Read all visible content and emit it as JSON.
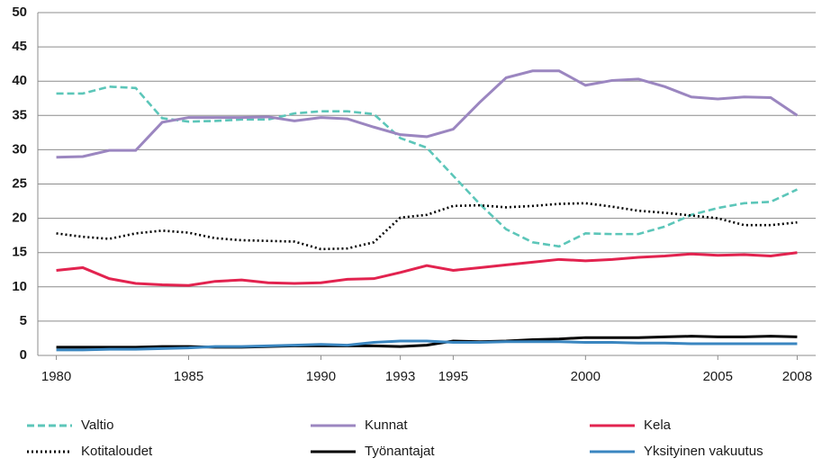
{
  "chart_data": {
    "type": "line",
    "x": [
      1980,
      1981,
      1982,
      1983,
      1984,
      1985,
      1986,
      1987,
      1988,
      1989,
      1990,
      1991,
      1992,
      1993,
      1994,
      1995,
      1996,
      1997,
      1998,
      1999,
      2000,
      2001,
      2002,
      2003,
      2004,
      2005,
      2006,
      2007,
      2008
    ],
    "xlim": [
      1979.3,
      2008.7
    ],
    "xticks": [
      1980,
      1985,
      1990,
      1993,
      1995,
      2000,
      2005,
      2008
    ],
    "ylim": [
      0,
      50
    ],
    "yticks": [
      0,
      5,
      10,
      15,
      20,
      25,
      30,
      35,
      40,
      45,
      50
    ],
    "grid": true,
    "legend": "bottom",
    "series": [
      {
        "name": "Valtio",
        "color": "#5cc6b9",
        "dash": "dashed",
        "values": [
          38.2,
          38.2,
          39.2,
          39.0,
          34.6,
          34.1,
          34.2,
          34.4,
          34.4,
          35.3,
          35.6,
          35.6,
          35.2,
          31.7,
          30.3,
          26.2,
          22.1,
          18.4,
          16.5,
          15.9,
          17.8,
          17.7,
          17.7,
          18.8,
          20.5,
          21.5,
          22.2,
          22.4,
          24.2
        ]
      },
      {
        "name": "Kunnat",
        "color": "#9b86c0",
        "dash": "solid",
        "values": [
          28.9,
          29.0,
          29.9,
          29.9,
          34.0,
          34.7,
          34.7,
          34.7,
          34.8,
          34.2,
          34.7,
          34.5,
          33.3,
          32.2,
          31.9,
          33.0,
          36.9,
          40.5,
          41.5,
          41.5,
          39.4,
          40.1,
          40.3,
          39.2,
          37.7,
          37.4,
          37.7,
          37.6,
          35.0
        ]
      },
      {
        "name": "Kela",
        "color": "#e2234f",
        "dash": "solid",
        "values": [
          12.4,
          12.8,
          11.2,
          10.5,
          10.3,
          10.2,
          10.8,
          11.0,
          10.6,
          10.5,
          10.6,
          11.1,
          11.2,
          12.1,
          13.1,
          12.4,
          12.8,
          13.2,
          13.6,
          14.0,
          13.8,
          14.0,
          14.3,
          14.5,
          14.8,
          14.6,
          14.7,
          14.5,
          15.0
        ]
      },
      {
        "name": "Kotitaloudet",
        "color": "#000000",
        "dash": "dotted",
        "values": [
          17.8,
          17.3,
          17.0,
          17.8,
          18.2,
          17.9,
          17.1,
          16.8,
          16.7,
          16.6,
          15.5,
          15.6,
          16.5,
          20.1,
          20.5,
          21.8,
          21.9,
          21.6,
          21.8,
          22.1,
          22.2,
          21.7,
          21.1,
          20.8,
          20.4,
          20.0,
          19.0,
          19.0,
          19.4
        ]
      },
      {
        "name": "Työnantajat",
        "color": "#000000",
        "dash": "solid",
        "values": [
          1.2,
          1.2,
          1.2,
          1.2,
          1.3,
          1.3,
          1.2,
          1.2,
          1.3,
          1.4,
          1.4,
          1.4,
          1.4,
          1.3,
          1.5,
          2.1,
          2.0,
          2.1,
          2.3,
          2.4,
          2.6,
          2.6,
          2.6,
          2.7,
          2.8,
          2.7,
          2.7,
          2.8,
          2.7
        ]
      },
      {
        "name": "Yksityinen vakuutus",
        "color": "#3a86c0",
        "dash": "solid",
        "values": [
          0.8,
          0.8,
          0.9,
          0.9,
          1.0,
          1.1,
          1.3,
          1.3,
          1.4,
          1.5,
          1.6,
          1.5,
          1.9,
          2.1,
          2.1,
          1.9,
          1.9,
          2.0,
          2.0,
          2.0,
          1.9,
          1.9,
          1.8,
          1.8,
          1.7,
          1.7,
          1.7,
          1.7,
          1.7
        ]
      }
    ]
  }
}
